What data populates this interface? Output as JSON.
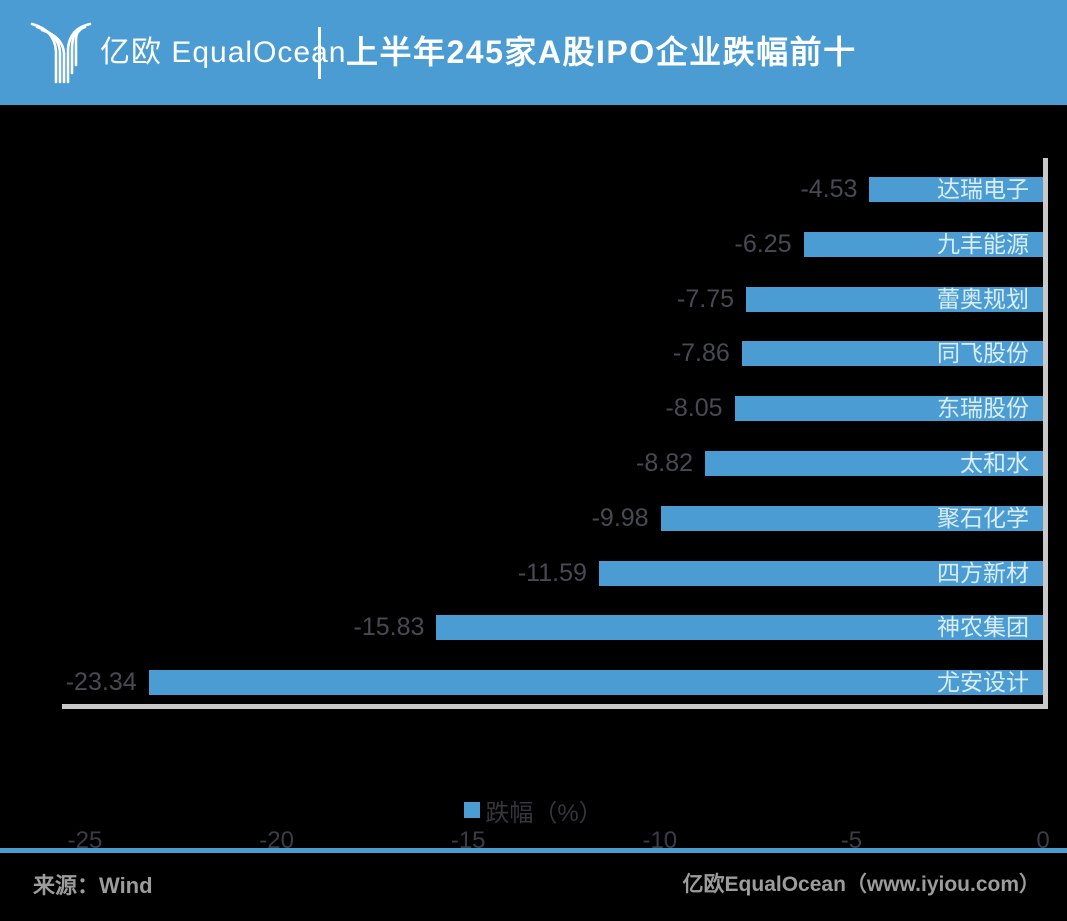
{
  "header": {
    "logo_text": "亿欧 EqualOcean",
    "title": "上半年245家A股IPO企业跌幅前十"
  },
  "chart_data": {
    "type": "bar",
    "orientation": "horizontal",
    "title": "上半年245家A股IPO企业跌幅前十",
    "categories": [
      "达瑞电子",
      "九丰能源",
      "蕾奥规划",
      "同飞股份",
      "东瑞股份",
      "太和水",
      "聚石化学",
      "四方新材",
      "神农集团",
      "尤安设计"
    ],
    "values": [
      -4.53,
      -6.25,
      -7.75,
      -7.86,
      -8.05,
      -8.82,
      -9.98,
      -11.59,
      -15.83,
      -23.34
    ],
    "series_name": "跌幅（%）",
    "x_ticks": [
      -25,
      -20,
      -15,
      -10,
      -5,
      0
    ],
    "xlim": [
      -25,
      0
    ],
    "bar_color": "#4a9cd2",
    "grid": false,
    "legend_position": "bottom"
  },
  "legend": {
    "label": "跌幅（%）"
  },
  "footer": {
    "source": "来源：Wind",
    "brand": "亿欧EqualOcean（www.iyiou.com）"
  },
  "colors": {
    "header_bg": "#4a9cd2",
    "bar": "#4a9cd2",
    "chart_bg": "#000000",
    "axis_line": "#c9c9c9",
    "value_label": "#474a52",
    "tick_label": "#3b3d44",
    "bar_name_label": "#d9edf8",
    "footer_text": "#9c9c9c"
  }
}
